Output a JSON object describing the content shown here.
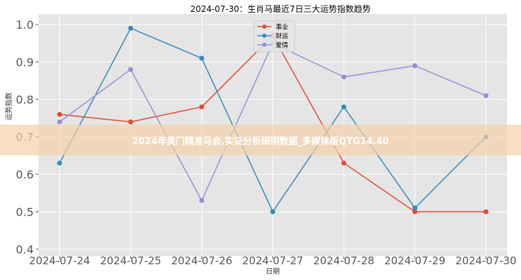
{
  "chart_data": {
    "type": "line",
    "title": "2024-07-30：生肖马最近7日三大运势指数趋势",
    "xlabel": "日期",
    "ylabel": "运势指数",
    "ylim": [
      0.4,
      1.0
    ],
    "yticks": [
      "0.4",
      "0.5",
      "0.6",
      "0.7",
      "0.8",
      "0.9",
      "1.0"
    ],
    "categories": [
      "2024-07-24",
      "2024-07-25",
      "2024-07-26",
      "2024-07-27",
      "2024-07-28",
      "2024-07-29",
      "2024-07-30"
    ],
    "grid": true,
    "legend_position": "top-center",
    "series": [
      {
        "name": "事业",
        "color": "#E24A33",
        "values": [
          0.76,
          0.74,
          0.78,
          0.97,
          0.63,
          0.5,
          0.5
        ]
      },
      {
        "name": "财运",
        "color": "#348ABD",
        "values": [
          0.63,
          0.99,
          0.91,
          0.5,
          0.78,
          0.51,
          0.7
        ]
      },
      {
        "name": "爱情",
        "color": "#988ED5",
        "values": [
          0.74,
          0.88,
          0.53,
          0.95,
          0.86,
          0.89,
          0.81
        ]
      }
    ]
  },
  "overlay": {
    "banner_text": "2024年奥门精准马会,实证分析细明数据_多媒体版QTG14.40"
  }
}
